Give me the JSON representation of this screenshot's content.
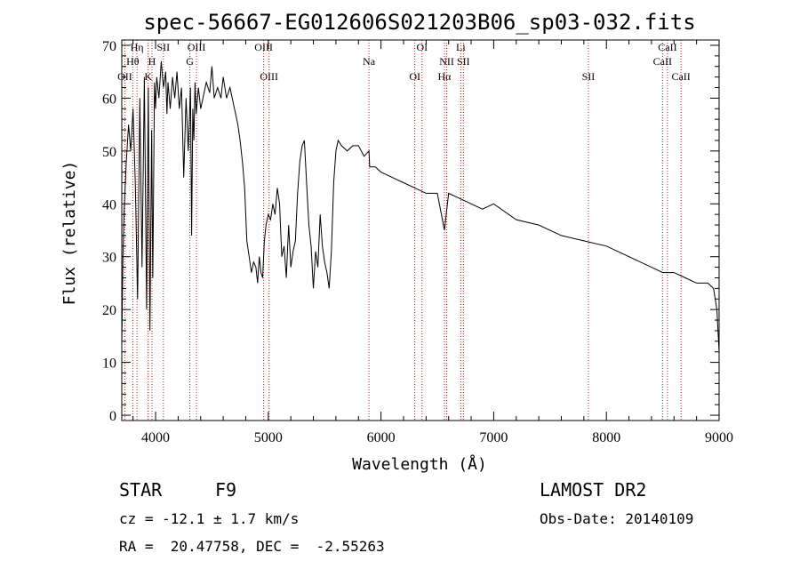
{
  "header": {
    "title": "spec-56667-EG012606S021203B06_sp03-032.fits"
  },
  "info": {
    "object_class": "STAR",
    "subclass": "F9",
    "survey": "LAMOST DR2",
    "cz_line": "cz = -12.1 ± 1.7 km/s",
    "obs_date_line": "Obs-Date: 20140109",
    "coords_line": "RA =  20.47758, DEC =  -2.55263"
  },
  "chart_data": {
    "type": "line",
    "title": "spec-56667-EG012606S021203B06_sp03-032.fits",
    "xlabel": "Wavelength (Å)",
    "ylabel": "Flux (relative)",
    "xlim": [
      3700,
      9000
    ],
    "ylim": [
      -1,
      71
    ],
    "x_ticks": [
      4000,
      5000,
      6000,
      7000,
      8000,
      9000
    ],
    "y_ticks": [
      0,
      10,
      20,
      30,
      40,
      50,
      60,
      70
    ],
    "grid": false,
    "line_color": "#000000",
    "marker_color": "#b22222",
    "series": [
      {
        "x": [
          3700,
          3710,
          3720,
          3740,
          3760,
          3780,
          3800,
          3820,
          3840,
          3860,
          3880,
          3900,
          3920,
          3935,
          3950,
          3965,
          3975,
          3990,
          4000,
          4010,
          4030,
          4050,
          4070,
          4090,
          4101,
          4110,
          4130,
          4150,
          4170,
          4190,
          4210,
          4230,
          4250,
          4270,
          4290,
          4310,
          4320,
          4330,
          4340,
          4350,
          4360,
          4380,
          4400,
          4420,
          4450,
          4480,
          4500,
          4520,
          4550,
          4580,
          4600,
          4630,
          4660,
          4700,
          4730,
          4750,
          4770,
          4790,
          4810,
          4830,
          4850,
          4870,
          4890,
          4905,
          4920,
          4935,
          4950,
          4965,
          4980,
          5000,
          5020,
          5040,
          5060,
          5080,
          5100,
          5120,
          5140,
          5160,
          5180,
          5200,
          5220,
          5240,
          5260,
          5280,
          5300,
          5320,
          5340,
          5360,
          5380,
          5400,
          5420,
          5440,
          5460,
          5480,
          5500,
          5520,
          5540,
          5560,
          5580,
          5600,
          5620,
          5650,
          5700,
          5750,
          5800,
          5850,
          5893,
          5900,
          5950,
          6000,
          6100,
          6200,
          6300,
          6400,
          6500,
          6563,
          6600,
          6700,
          6800,
          6900,
          7000,
          7200,
          7400,
          7600,
          7800,
          8000,
          8200,
          8400,
          8500,
          8600,
          8700,
          8800,
          8900,
          8950,
          8980,
          9000
        ],
        "y": [
          13,
          30,
          38,
          48,
          55,
          50,
          58,
          44,
          22,
          60,
          28,
          64,
          20,
          62,
          16,
          54,
          26,
          63,
          58,
          64,
          60,
          67,
          62,
          65,
          57,
          63,
          58,
          64,
          60,
          65,
          58,
          62,
          45,
          60,
          50,
          62,
          34,
          58,
          52,
          63,
          57,
          62,
          58,
          60,
          63,
          61,
          66,
          60,
          62,
          60,
          64,
          60,
          62,
          58,
          55,
          52,
          48,
          43,
          33,
          30,
          27,
          29,
          28,
          25,
          30,
          27,
          26,
          33,
          36,
          38,
          37,
          40,
          38,
          43,
          40,
          30,
          32,
          26,
          36,
          28,
          31,
          33,
          42,
          48,
          51,
          52,
          44,
          36,
          32,
          24,
          31,
          28,
          38,
          32,
          29,
          27,
          24,
          31,
          44,
          50,
          52,
          51,
          50,
          51,
          51,
          49,
          50,
          47,
          47,
          46,
          45,
          44,
          43,
          42,
          42,
          35,
          42,
          41,
          40,
          39,
          40,
          37,
          36,
          34,
          33,
          32,
          30,
          28,
          27,
          27,
          26,
          25,
          25,
          24,
          20,
          12
        ],
        "markers": [
          {
            "label": "Hη",
            "x": 3835
          },
          {
            "label": "Hθ",
            "x": 3797
          },
          {
            "label": "OII",
            "x": 3727
          },
          {
            "label": "SII",
            "x": 4069
          },
          {
            "label": "H",
            "x": 3968
          },
          {
            "label": "K",
            "x": 3934
          },
          {
            "label": "OIII",
            "x": 4363
          },
          {
            "label": "G",
            "x": 4304
          },
          {
            "label": "OIII",
            "x": 5007
          },
          {
            "label": "OIII",
            "x": 4959
          },
          {
            "label": "Na",
            "x": 5893
          },
          {
            "label": "OI",
            "x": 6300
          },
          {
            "label": "OI",
            "x": 6364
          },
          {
            "label": "NII",
            "x": 6583
          },
          {
            "label": "Hα",
            "x": 6563
          },
          {
            "label": "Li",
            "x": 6708
          },
          {
            "label": "SII",
            "x": 6731
          },
          {
            "label": "SII",
            "x": 7840
          },
          {
            "label": "CaII",
            "x": 8542
          },
          {
            "label": "CaII",
            "x": 8498
          },
          {
            "label": "CaII",
            "x": 8662
          }
        ]
      }
    ]
  }
}
